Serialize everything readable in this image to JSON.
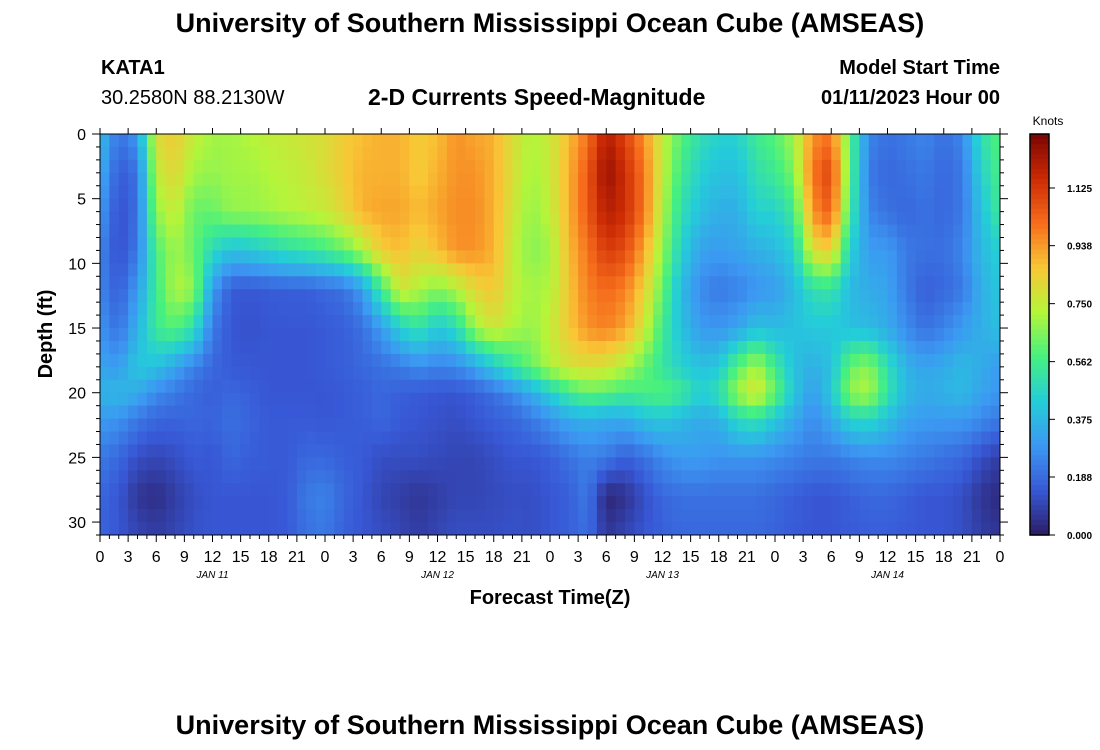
{
  "header": {
    "title": "University of Southern Mississippi Ocean Cube (AMSEAS)",
    "station": "KATA1",
    "coords": "30.2580N  88.2130W",
    "plot_title": "2-D Currents Speed-Magnitude",
    "model_label": "Model Start Time",
    "model_start": "01/11/2023 Hour 00"
  },
  "footer": {
    "title": "University of Southern Mississippi Ocean Cube (AMSEAS)"
  },
  "chart_data": {
    "type": "heatmap",
    "title": "2-D Currents Speed-Magnitude",
    "xlabel": "Forecast Time(Z)",
    "ylabel": "Depth (ft)",
    "x_tick_labels": [
      "0",
      "3",
      "6",
      "9",
      "12",
      "15",
      "18",
      "21",
      "0",
      "3",
      "6",
      "9",
      "12",
      "15",
      "18",
      "21",
      "0",
      "3",
      "6",
      "9",
      "12",
      "15",
      "18",
      "21",
      "0",
      "3",
      "6",
      "9",
      "12",
      "15",
      "18",
      "21",
      "0"
    ],
    "x_range_hours": [
      0,
      96
    ],
    "date_labels": [
      {
        "hour": 12,
        "text": "JAN 11"
      },
      {
        "hour": 36,
        "text": "JAN 12"
      },
      {
        "hour": 60,
        "text": "JAN 13"
      },
      {
        "hour": 84,
        "text": "JAN 14"
      }
    ],
    "y_ticks": [
      0,
      5,
      10,
      15,
      20,
      25,
      30
    ],
    "y_range_ft": [
      0,
      31
    ],
    "colorbar": {
      "unit_label": "Knots",
      "ticks": [
        "1.125",
        "0.938",
        "0.750",
        "0.562",
        "0.375",
        "0.188",
        "0.000"
      ],
      "tick_values": [
        1.125,
        0.938,
        0.75,
        0.562,
        0.375,
        0.188,
        0.0
      ],
      "range": [
        0,
        1.3
      ],
      "colors": [
        "#2b1d66",
        "#3858d6",
        "#3c98f2",
        "#24cdd8",
        "#46f080",
        "#b4f53a",
        "#f9c636",
        "#f66c1c",
        "#cb2a04",
        "#7a0403"
      ]
    },
    "speed_anchor_depths_ft": [
      0,
      3,
      6,
      9,
      12,
      15,
      18,
      20,
      22,
      25,
      28,
      31
    ],
    "speed_anchor_hours": [
      0,
      2,
      4,
      6,
      8,
      10,
      12,
      14,
      16,
      18,
      20,
      22,
      24,
      26,
      28,
      30,
      32,
      34,
      36,
      38,
      40,
      42,
      44,
      46,
      48,
      50,
      52,
      54,
      56,
      58,
      60,
      62,
      64,
      66,
      68,
      70,
      72,
      74,
      76,
      78,
      80,
      82,
      84,
      86,
      88,
      90,
      92,
      94,
      96
    ],
    "speed_knots": [
      [
        0.4,
        0.2,
        0.3,
        0.8,
        0.85,
        0.75,
        0.7,
        0.7,
        0.72,
        0.75,
        0.76,
        0.78,
        0.8,
        0.85,
        0.88,
        0.9,
        0.9,
        0.85,
        0.88,
        0.95,
        0.92,
        0.9,
        0.8,
        0.72,
        0.76,
        0.88,
        1.0,
        1.2,
        1.1,
        0.95,
        0.75,
        0.6,
        0.5,
        0.45,
        0.45,
        0.55,
        0.6,
        0.7,
        0.95,
        1.0,
        0.6,
        0.25,
        0.2,
        0.22,
        0.25,
        0.2,
        0.25,
        0.5,
        0.6
      ],
      [
        0.35,
        0.15,
        0.2,
        0.75,
        0.82,
        0.7,
        0.68,
        0.7,
        0.7,
        0.72,
        0.74,
        0.76,
        0.8,
        0.85,
        0.9,
        0.9,
        0.9,
        0.85,
        0.9,
        0.95,
        0.95,
        0.9,
        0.8,
        0.7,
        0.76,
        0.9,
        1.05,
        1.25,
        1.15,
        1.0,
        0.75,
        0.55,
        0.45,
        0.4,
        0.4,
        0.5,
        0.55,
        0.65,
        1.0,
        1.1,
        0.6,
        0.22,
        0.18,
        0.2,
        0.22,
        0.18,
        0.22,
        0.45,
        0.58
      ],
      [
        0.3,
        0.12,
        0.2,
        0.68,
        0.76,
        0.62,
        0.62,
        0.68,
        0.68,
        0.7,
        0.72,
        0.74,
        0.76,
        0.82,
        0.9,
        0.92,
        0.92,
        0.88,
        0.92,
        0.96,
        0.96,
        0.9,
        0.78,
        0.68,
        0.74,
        0.9,
        1.05,
        1.2,
        1.15,
        1.0,
        0.72,
        0.5,
        0.4,
        0.35,
        0.35,
        0.45,
        0.45,
        0.55,
        0.95,
        1.05,
        0.55,
        0.25,
        0.2,
        0.18,
        0.2,
        0.18,
        0.22,
        0.4,
        0.55
      ],
      [
        0.25,
        0.12,
        0.22,
        0.58,
        0.7,
        0.62,
        0.48,
        0.4,
        0.42,
        0.46,
        0.5,
        0.52,
        0.56,
        0.62,
        0.72,
        0.85,
        0.88,
        0.82,
        0.88,
        0.95,
        0.95,
        0.9,
        0.75,
        0.66,
        0.7,
        0.88,
        1.0,
        1.12,
        1.08,
        0.92,
        0.68,
        0.45,
        0.32,
        0.3,
        0.32,
        0.35,
        0.38,
        0.45,
        0.8,
        0.85,
        0.45,
        0.3,
        0.3,
        0.22,
        0.2,
        0.2,
        0.25,
        0.38,
        0.45
      ],
      [
        0.25,
        0.15,
        0.3,
        0.55,
        0.72,
        0.68,
        0.3,
        0.15,
        0.14,
        0.15,
        0.16,
        0.16,
        0.18,
        0.2,
        0.3,
        0.55,
        0.78,
        0.72,
        0.66,
        0.72,
        0.82,
        0.86,
        0.75,
        0.7,
        0.72,
        0.86,
        0.98,
        1.02,
        0.98,
        0.84,
        0.62,
        0.38,
        0.26,
        0.22,
        0.24,
        0.28,
        0.3,
        0.38,
        0.5,
        0.52,
        0.38,
        0.34,
        0.32,
        0.22,
        0.16,
        0.18,
        0.22,
        0.35,
        0.42
      ],
      [
        0.28,
        0.2,
        0.36,
        0.55,
        0.6,
        0.5,
        0.22,
        0.14,
        0.13,
        0.14,
        0.14,
        0.14,
        0.15,
        0.16,
        0.2,
        0.3,
        0.44,
        0.52,
        0.42,
        0.48,
        0.7,
        0.78,
        0.72,
        0.68,
        0.75,
        0.86,
        0.95,
        0.98,
        0.92,
        0.78,
        0.55,
        0.4,
        0.3,
        0.28,
        0.32,
        0.4,
        0.38,
        0.4,
        0.42,
        0.42,
        0.4,
        0.38,
        0.34,
        0.26,
        0.2,
        0.24,
        0.3,
        0.35,
        0.4
      ],
      [
        0.32,
        0.3,
        0.42,
        0.4,
        0.32,
        0.24,
        0.18,
        0.15,
        0.14,
        0.14,
        0.14,
        0.14,
        0.15,
        0.16,
        0.18,
        0.2,
        0.22,
        0.26,
        0.24,
        0.25,
        0.32,
        0.42,
        0.52,
        0.62,
        0.72,
        0.78,
        0.8,
        0.78,
        0.72,
        0.62,
        0.52,
        0.45,
        0.4,
        0.42,
        0.6,
        0.72,
        0.55,
        0.4,
        0.35,
        0.4,
        0.62,
        0.68,
        0.5,
        0.36,
        0.32,
        0.34,
        0.38,
        0.34,
        0.3
      ],
      [
        0.36,
        0.38,
        0.34,
        0.26,
        0.22,
        0.18,
        0.16,
        0.18,
        0.16,
        0.14,
        0.14,
        0.14,
        0.14,
        0.15,
        0.16,
        0.18,
        0.16,
        0.15,
        0.14,
        0.14,
        0.16,
        0.2,
        0.26,
        0.34,
        0.44,
        0.55,
        0.62,
        0.6,
        0.56,
        0.58,
        0.6,
        0.55,
        0.45,
        0.5,
        0.7,
        0.8,
        0.62,
        0.42,
        0.3,
        0.42,
        0.68,
        0.72,
        0.52,
        0.38,
        0.34,
        0.36,
        0.38,
        0.32,
        0.28
      ],
      [
        0.3,
        0.28,
        0.22,
        0.18,
        0.17,
        0.18,
        0.17,
        0.2,
        0.17,
        0.15,
        0.15,
        0.15,
        0.14,
        0.15,
        0.16,
        0.18,
        0.15,
        0.14,
        0.13,
        0.12,
        0.14,
        0.16,
        0.18,
        0.22,
        0.28,
        0.34,
        0.36,
        0.34,
        0.34,
        0.4,
        0.42,
        0.38,
        0.34,
        0.36,
        0.48,
        0.52,
        0.42,
        0.34,
        0.26,
        0.34,
        0.46,
        0.48,
        0.4,
        0.32,
        0.3,
        0.3,
        0.3,
        0.26,
        0.22
      ],
      [
        0.22,
        0.18,
        0.12,
        0.1,
        0.12,
        0.15,
        0.14,
        0.18,
        0.16,
        0.15,
        0.15,
        0.18,
        0.18,
        0.16,
        0.15,
        0.12,
        0.12,
        0.12,
        0.11,
        0.1,
        0.1,
        0.12,
        0.14,
        0.14,
        0.16,
        0.2,
        0.24,
        0.22,
        0.16,
        0.2,
        0.26,
        0.3,
        0.3,
        0.28,
        0.28,
        0.28,
        0.26,
        0.24,
        0.22,
        0.22,
        0.24,
        0.26,
        0.26,
        0.24,
        0.22,
        0.2,
        0.18,
        0.12,
        0.08
      ],
      [
        0.18,
        0.14,
        0.06,
        0.04,
        0.08,
        0.12,
        0.14,
        0.14,
        0.14,
        0.14,
        0.15,
        0.22,
        0.24,
        0.18,
        0.14,
        0.1,
        0.08,
        0.06,
        0.08,
        0.1,
        0.1,
        0.11,
        0.12,
        0.12,
        0.14,
        0.16,
        0.22,
        0.02,
        0.05,
        0.12,
        0.18,
        0.2,
        0.2,
        0.2,
        0.2,
        0.2,
        0.18,
        0.16,
        0.14,
        0.14,
        0.16,
        0.18,
        0.18,
        0.16,
        0.14,
        0.14,
        0.12,
        0.06,
        0.03
      ],
      [
        0.17,
        0.14,
        0.1,
        0.08,
        0.1,
        0.13,
        0.14,
        0.14,
        0.14,
        0.14,
        0.15,
        0.2,
        0.22,
        0.16,
        0.14,
        0.12,
        0.1,
        0.08,
        0.1,
        0.12,
        0.12,
        0.12,
        0.13,
        0.12,
        0.14,
        0.16,
        0.2,
        0.06,
        0.1,
        0.14,
        0.16,
        0.18,
        0.18,
        0.18,
        0.18,
        0.18,
        0.17,
        0.15,
        0.14,
        0.14,
        0.15,
        0.16,
        0.16,
        0.15,
        0.14,
        0.14,
        0.12,
        0.08,
        0.06
      ]
    ]
  }
}
